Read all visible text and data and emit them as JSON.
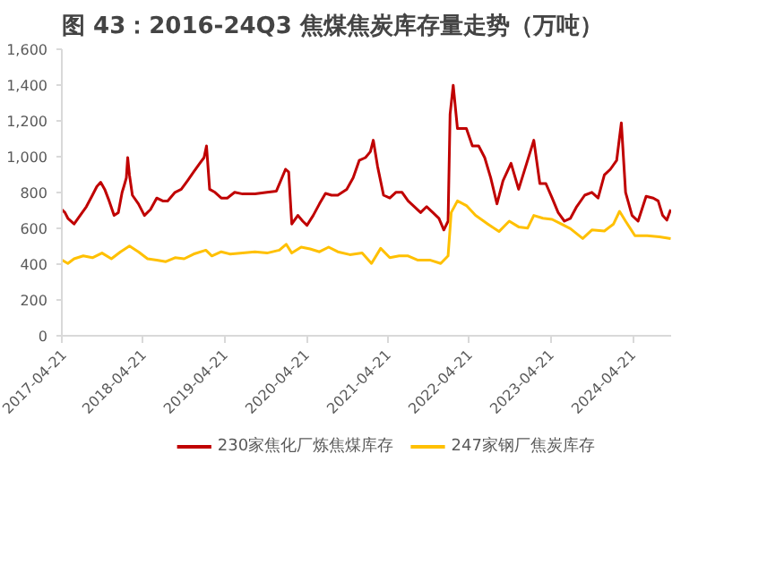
{
  "chart_data": {
    "type": "line",
    "title": "图 43：2016-24Q3 焦煤焦炭库存量走势（万吨）",
    "xlim": [
      "2017-04-21",
      "2024-10-10"
    ],
    "xticks": [
      {
        "value": "2017-04-21",
        "label": "2017-04-21"
      },
      {
        "value": "2018-04-21",
        "label": "2018-04-21"
      },
      {
        "value": "2019-04-21",
        "label": "2019-04-21"
      },
      {
        "value": "2020-04-21",
        "label": "2020-04-21"
      },
      {
        "value": "2021-04-21",
        "label": "2021-04-21"
      },
      {
        "value": "2022-04-21",
        "label": "2022-04-21"
      },
      {
        "value": "2023-04-21",
        "label": "2023-04-21"
      },
      {
        "value": "2024-04-21",
        "label": "2024-04-21"
      }
    ],
    "ylim": [
      0,
      1600
    ],
    "yticks": [
      0,
      200,
      400,
      600,
      800,
      {
        "value": 1000,
        "label": "1,000"
      },
      {
        "value": 1200,
        "label": "1,200"
      },
      {
        "value": 1400,
        "label": "1,400"
      },
      {
        "value": 1600,
        "label": "1,600"
      }
    ],
    "grid": false,
    "legend": "bottom",
    "marker": "none",
    "line_style": "solid",
    "series": [
      {
        "name": "230家焦化厂炼焦煤库存",
        "color": "#c00000",
        "x": [
          "2017-04-21",
          "2017-05-05",
          "2017-05-18",
          "2017-06-15",
          "2017-07-12",
          "2017-08-09",
          "2017-09-05",
          "2017-09-25",
          "2017-10-12",
          "2017-10-30",
          "2017-11-19",
          "2017-12-11",
          "2017-12-30",
          "2018-01-16",
          "2018-01-24",
          "2018-02-04",
          "2018-02-10",
          "2018-02-18",
          "2018-03-03",
          "2018-03-30",
          "2018-04-26",
          "2018-05-23",
          "2018-06-20",
          "2018-07-17",
          "2018-08-08",
          "2018-09-10",
          "2018-10-08",
          "2018-11-05",
          "2018-12-02",
          "2018-12-30",
          "2019-01-18",
          "2019-01-29",
          "2019-02-12",
          "2019-03-08",
          "2019-04-05",
          "2019-05-02",
          "2019-06-04",
          "2019-07-10",
          "2019-09-03",
          "2019-10-27",
          "2019-12-08",
          "2020-01-18",
          "2020-02-01",
          "2020-02-15",
          "2020-03-13",
          "2020-04-04",
          "2020-04-23",
          "2020-05-21",
          "2020-06-18",
          "2020-07-15",
          "2020-08-11",
          "2020-09-08",
          "2020-10-18",
          "2020-11-16",
          "2020-12-13",
          "2021-01-10",
          "2021-02-01",
          "2021-02-14",
          "2021-03-05",
          "2021-04-01",
          "2021-04-29",
          "2021-05-26",
          "2021-06-23",
          "2021-07-20",
          "2021-08-17",
          "2021-09-14",
          "2021-10-11",
          "2021-11-08",
          "2021-12-05",
          "2021-12-27",
          "2022-01-15",
          "2022-01-24",
          "2022-02-07",
          "2022-02-26",
          "2022-04-07",
          "2022-05-04",
          "2022-06-01",
          "2022-06-28",
          "2022-07-25",
          "2022-08-22",
          "2022-09-18",
          "2022-10-24",
          "2022-11-27",
          "2022-12-29",
          "2023-02-03",
          "2023-03-02",
          "2023-03-29",
          "2023-04-26",
          "2023-05-23",
          "2023-06-20",
          "2023-07-17",
          "2023-08-14",
          "2023-09-19",
          "2023-10-21",
          "2023-11-18",
          "2023-12-16",
          "2024-01-12",
          "2024-02-09",
          "2024-03-01",
          "2024-03-20",
          "2024-04-18",
          "2024-05-15",
          "2024-06-20",
          "2024-07-22",
          "2024-08-13",
          "2024-09-02",
          "2024-09-21",
          "2024-10-08"
        ],
        "values": [
          705,
          688,
          656,
          624,
          672,
          721,
          785,
          834,
          857,
          818,
          753,
          672,
          688,
          801,
          834,
          882,
          995,
          898,
          785,
          737,
          672,
          705,
          769,
          753,
          753,
          801,
          818,
          866,
          914,
          963,
          995,
          1060,
          818,
          801,
          769,
          769,
          801,
          792,
          792,
          801,
          808,
          930,
          914,
          624,
          672,
          640,
          617,
          672,
          737,
          795,
          785,
          785,
          818,
          882,
          979,
          995,
          1028,
          1092,
          947,
          785,
          769,
          801,
          801,
          753,
          721,
          688,
          721,
          688,
          656,
          591,
          640,
          1237,
          1399,
          1157,
          1157,
          1060,
          1060,
          995,
          882,
          737,
          866,
          963,
          818,
          947,
          1092,
          850,
          850,
          769,
          688,
          640,
          656,
          721,
          785,
          801,
          769,
          898,
          930,
          979,
          1189,
          801,
          672,
          640,
          779,
          769,
          753,
          672,
          646,
          705
        ]
      },
      {
        "name": "247家钢厂焦炭库存",
        "color": "#ffc000",
        "x": [
          "2017-04-21",
          "2017-05-18",
          "2017-06-15",
          "2017-07-26",
          "2017-09-05",
          "2017-10-18",
          "2017-11-29",
          "2018-01-09",
          "2018-02-18",
          "2018-03-30",
          "2018-05-10",
          "2018-06-20",
          "2018-07-31",
          "2018-09-10",
          "2018-10-21",
          "2018-12-02",
          "2019-01-26",
          "2019-02-22",
          "2019-04-05",
          "2019-05-15",
          "2019-07-10",
          "2019-09-03",
          "2019-10-27",
          "2019-12-21",
          "2020-01-21",
          "2020-02-15",
          "2020-03-28",
          "2020-05-07",
          "2020-06-18",
          "2020-07-29",
          "2020-09-08",
          "2020-11-01",
          "2020-12-26",
          "2021-02-06",
          "2021-03-19",
          "2021-04-29",
          "2021-06-10",
          "2021-07-20",
          "2021-08-31",
          "2021-10-25",
          "2021-12-13",
          "2022-01-15",
          "2022-01-29",
          "2022-02-26",
          "2022-04-07",
          "2022-05-18",
          "2022-07-12",
          "2022-08-31",
          "2022-10-16",
          "2022-11-27",
          "2023-01-06",
          "2023-02-03",
          "2023-03-16",
          "2023-04-26",
          "2023-06-06",
          "2023-07-17",
          "2023-09-10",
          "2023-10-21",
          "2023-12-16",
          "2024-01-26",
          "2024-02-22",
          "2024-03-20",
          "2024-05-01",
          "2024-06-25",
          "2024-08-19",
          "2024-10-08"
        ],
        "values": [
          423,
          404,
          430,
          446,
          436,
          462,
          430,
          469,
          501,
          469,
          430,
          423,
          414,
          436,
          430,
          456,
          478,
          446,
          469,
          456,
          462,
          469,
          462,
          478,
          511,
          462,
          495,
          485,
          469,
          495,
          469,
          453,
          462,
          404,
          488,
          436,
          446,
          446,
          423,
          423,
          404,
          446,
          688,
          753,
          727,
          672,
          624,
          582,
          640,
          608,
          601,
          672,
          656,
          650,
          624,
          598,
          543,
          591,
          585,
          624,
          695,
          640,
          559,
          559,
          553,
          543
        ]
      }
    ]
  }
}
